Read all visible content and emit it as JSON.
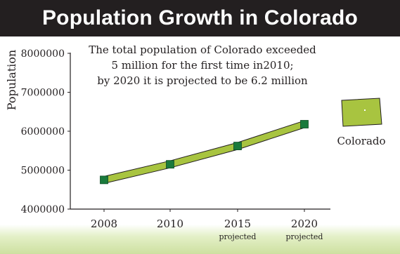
{
  "chart_data": {
    "type": "line",
    "title": "Population Growth in Colorado",
    "ylabel": "Population",
    "xlabel": "",
    "ylim": [
      4000000,
      8000000
    ],
    "yticks": [
      "8000000",
      "7000000",
      "6000000",
      "5000000",
      "4000000"
    ],
    "categories": [
      {
        "label": "2008",
        "sublabel": ""
      },
      {
        "label": "2010",
        "sublabel": ""
      },
      {
        "label": "2015",
        "sublabel": "projected"
      },
      {
        "label": "2020",
        "sublabel": "projected"
      }
    ],
    "series": [
      {
        "name": "Colorado",
        "values": [
          4750000,
          5150000,
          5620000,
          6180000
        ]
      }
    ],
    "annotation": [
      "The total population of Colorado exceeded",
      "5 million for the first time in2010;",
      "by 2020 it is projected to be 6.2 million"
    ],
    "legend_position": "right",
    "colors": {
      "line_fill": "#a8c440",
      "marker": "#1a7a3c",
      "title_bg": "#231f20"
    }
  }
}
